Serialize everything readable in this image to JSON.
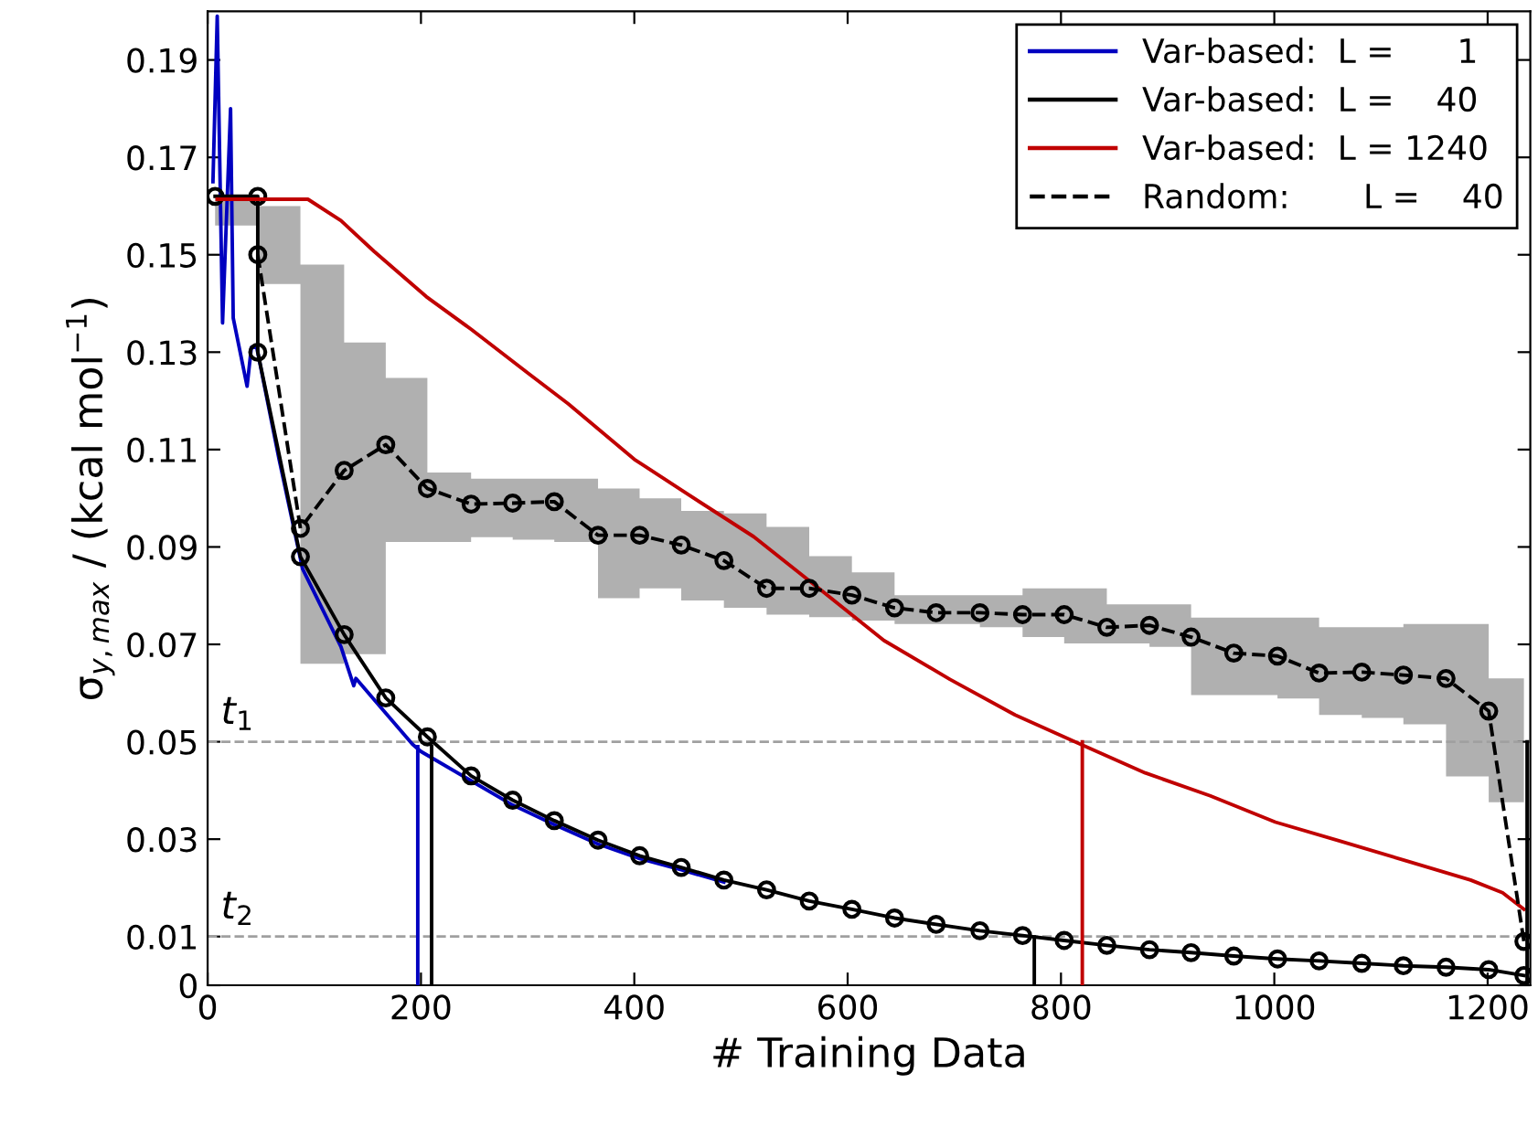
{
  "chart_data": {
    "type": "line",
    "xlabel": "# Training Data",
    "ylabel": "σ$_{y,max}$ / (kcal mol$^{−1}$)",
    "xlim": [
      0,
      1240
    ],
    "xticks": [
      0,
      200,
      400,
      600,
      800,
      1000,
      1200
    ],
    "ylim": [
      0,
      0.2
    ],
    "yticks": [
      0,
      0.01,
      0.03,
      0.05,
      0.07,
      0.09,
      0.11,
      0.13,
      0.15,
      0.17,
      0.19
    ],
    "grid": false,
    "legend": "top right",
    "ref_lines": [
      {
        "axis": "y",
        "value": 0.05,
        "label": "t$_{1}$",
        "color": "#a0a0a0",
        "line_style": "dashed"
      },
      {
        "axis": "y",
        "value": 0.01,
        "label": "t$_{2}$",
        "color": "#a0a0a0",
        "line_style": "dashed"
      }
    ],
    "series": [
      {
        "name": "Var-based:  L =      1",
        "color": "#0000c0",
        "line_style": "solid",
        "marker": "none",
        "x": [
          5,
          9,
          14,
          21.5,
          24,
          37,
          41,
          46,
          67,
          89,
          125,
          137,
          139,
          192,
          200,
          247,
          286,
          325,
          366,
          405,
          444,
          484
        ],
        "values": [
          0.165,
          0.199,
          0.136,
          0.18,
          0.137,
          0.123,
          0.131,
          0.131,
          0.108,
          0.0855,
          0.0695,
          0.0615,
          0.063,
          0.0495,
          0.048,
          0.042,
          0.037,
          0.033,
          0.029,
          0.026,
          0.0237,
          0.0212
        ]
      },
      {
        "name": "Var-based:  L =    40",
        "color": "#000000",
        "line_style": "solid",
        "marker": "circle",
        "x": [
          7,
          47,
          47,
          87,
          128,
          167,
          206,
          247,
          286,
          325,
          366,
          405,
          444,
          484,
          524,
          564,
          604,
          644,
          683,
          724,
          764,
          803,
          843,
          883,
          922,
          962,
          1003,
          1042,
          1082,
          1121,
          1161,
          1201,
          1234
        ],
        "values": [
          0.162,
          0.162,
          0.13,
          0.088,
          0.072,
          0.059,
          0.051,
          0.043,
          0.038,
          0.0338,
          0.0298,
          0.0266,
          0.0242,
          0.0216,
          0.0196,
          0.0173,
          0.0156,
          0.0138,
          0.0125,
          0.0112,
          0.0102,
          0.0092,
          0.0082,
          0.0073,
          0.0067,
          0.006,
          0.0054,
          0.005,
          0.0045,
          0.004,
          0.0037,
          0.0032,
          0.002
        ]
      },
      {
        "name": "Var-based:  L = 1240",
        "color": "#c00000",
        "line_style": "solid",
        "marker": "none",
        "x": [
          9,
          94,
          125,
          156,
          205,
          247,
          302,
          338,
          400,
          451,
          512,
          573,
          634,
          696,
          757,
          811,
          879,
          940,
          1001,
          1062,
          1123,
          1184,
          1214,
          1234
        ],
        "values": [
          0.1614,
          0.1614,
          0.157,
          0.1507,
          0.1414,
          0.1347,
          0.1254,
          0.1194,
          0.108,
          0.1007,
          0.0921,
          0.0815,
          0.0708,
          0.0628,
          0.0555,
          0.0502,
          0.0436,
          0.0389,
          0.0335,
          0.0296,
          0.0256,
          0.0216,
          0.019,
          0.0156
        ]
      },
      {
        "name": "Random:       L =    40",
        "color": "#000000",
        "line_style": "dashed",
        "marker": "circle",
        "x": [
          7,
          47,
          87,
          128,
          167,
          206,
          247,
          286,
          325,
          366,
          405,
          444,
          484,
          524,
          564,
          604,
          644,
          683,
          724,
          764,
          803,
          843,
          883,
          922,
          962,
          1003,
          1042,
          1082,
          1121,
          1161,
          1201,
          1234
        ],
        "values": [
          null,
          0.15,
          0.0938,
          0.1057,
          0.111,
          0.102,
          0.0988,
          0.099,
          0.0993,
          0.0924,
          0.0924,
          0.0904,
          0.0872,
          0.0815,
          0.0815,
          0.0801,
          0.0775,
          0.0765,
          0.0765,
          0.0761,
          0.0761,
          0.0735,
          0.0739,
          0.0715,
          0.0682,
          0.0676,
          0.0641,
          0.0643,
          0.0637,
          0.063,
          0.0563,
          0.009
        ],
        "lower": [
          0.156,
          0.144,
          0.066,
          0.068,
          0.091,
          0.091,
          0.092,
          0.0915,
          0.091,
          0.0795,
          0.0815,
          0.079,
          0.0775,
          0.0761,
          0.0756,
          0.0749,
          0.0742,
          0.0742,
          0.0735,
          0.0715,
          0.0702,
          0.0702,
          0.0695,
          0.0596,
          0.0596,
          0.0589,
          0.0555,
          0.0549,
          0.0536,
          0.0429,
          0.0376,
          0.008
        ],
        "upper": [
          0.162,
          0.16,
          0.148,
          0.132,
          0.1247,
          0.1053,
          0.104,
          0.104,
          0.104,
          0.102,
          0.1,
          0.0974,
          0.0969,
          0.0941,
          0.0881,
          0.0848,
          0.0801,
          0.0801,
          0.0801,
          0.0815,
          0.0815,
          0.0782,
          0.0782,
          0.0755,
          0.0755,
          0.0755,
          0.0735,
          0.0735,
          0.0742,
          0.0742,
          0.063,
          0.06
        ]
      },
      {
        "color": "#0000c0",
        "line_style": "solid",
        "marker": "none",
        "x": [
          197,
          197
        ],
        "values": [
          0,
          0.049
        ]
      },
      {
        "color": "#000000",
        "line_style": "solid",
        "marker": "none",
        "x": [
          210,
          210
        ],
        "values": [
          0,
          0.049
        ]
      },
      {
        "color": "#000000",
        "line_style": "solid",
        "marker": "none",
        "x": [
          775,
          775
        ],
        "values": [
          0,
          0.0099
        ]
      },
      {
        "color": "#c00000",
        "line_style": "solid",
        "marker": "none",
        "x": [
          820,
          820
        ],
        "values": [
          0,
          0.05
        ]
      },
      {
        "color": "#000000",
        "line_style": "solid",
        "marker": "none",
        "x": [
          1237,
          1237
        ],
        "values": [
          0,
          0.05
        ]
      }
    ]
  }
}
